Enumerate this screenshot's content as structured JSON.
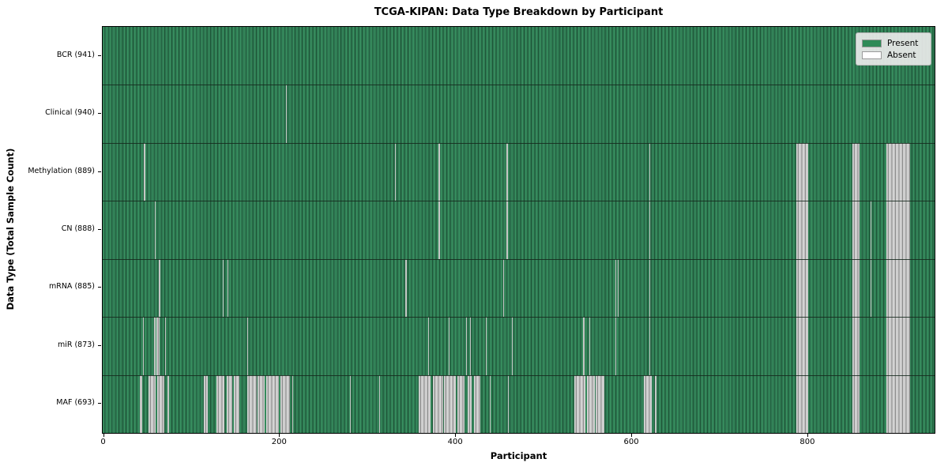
{
  "chart_data": {
    "type": "heatmap",
    "title": "TCGA-KIPAN: Data Type Breakdown by Participant",
    "xlabel": "Participant",
    "ylabel": "Data Type (Total Sample Count)",
    "x_ticks": [
      0,
      200,
      400,
      600,
      800
    ],
    "x_max": 945,
    "grid": false,
    "legend": {
      "position": "upper-right",
      "items": [
        {
          "label": "Present",
          "color": "#2e8b57"
        },
        {
          "label": "Absent",
          "color": "#ffffff"
        }
      ]
    },
    "rows": [
      {
        "label": "BCR (941)",
        "data_type": "BCR",
        "present_count": 941,
        "absent_ranges": []
      },
      {
        "label": "Clinical (940)",
        "data_type": "Clinical",
        "present_count": 940,
        "absent_ranges": [
          [
            208,
            1
          ]
        ]
      },
      {
        "label": "Methylation (889)",
        "data_type": "Methylation",
        "present_count": 889,
        "absent_ranges": [
          [
            47,
            1
          ],
          [
            332,
            1
          ],
          [
            381,
            2
          ],
          [
            459,
            1
          ],
          [
            621,
            1
          ],
          [
            788,
            13
          ],
          [
            852,
            8
          ],
          [
            890,
            27
          ]
        ]
      },
      {
        "label": "CN (888)",
        "data_type": "CN",
        "present_count": 888,
        "absent_ranges": [
          [
            59,
            1
          ],
          [
            381,
            2
          ],
          [
            459,
            1
          ],
          [
            621,
            1
          ],
          [
            788,
            13
          ],
          [
            852,
            8
          ],
          [
            872,
            1
          ],
          [
            890,
            27
          ]
        ]
      },
      {
        "label": "mRNA (885)",
        "data_type": "mRNA",
        "present_count": 885,
        "absent_ranges": [
          [
            64,
            1
          ],
          [
            136,
            1
          ],
          [
            142,
            1
          ],
          [
            344,
            1
          ],
          [
            455,
            1
          ],
          [
            582,
            1
          ],
          [
            585,
            1
          ],
          [
            621,
            1
          ],
          [
            788,
            13
          ],
          [
            852,
            8
          ],
          [
            872,
            1
          ],
          [
            890,
            27
          ]
        ]
      },
      {
        "label": "miR (873)",
        "data_type": "miR",
        "present_count": 873,
        "absent_ranges": [
          [
            46,
            1
          ],
          [
            58,
            2
          ],
          [
            61,
            4
          ],
          [
            71,
            1
          ],
          [
            164,
            1
          ],
          [
            370,
            1
          ],
          [
            393,
            1
          ],
          [
            413,
            1
          ],
          [
            417,
            1
          ],
          [
            435,
            1
          ],
          [
            465,
            1
          ],
          [
            546,
            1
          ],
          [
            553,
            1
          ],
          [
            582,
            1
          ],
          [
            621,
            1
          ],
          [
            788,
            13
          ],
          [
            852,
            8
          ],
          [
            890,
            27
          ]
        ]
      },
      {
        "label": "MAF (693)",
        "data_type": "MAF",
        "present_count": 693,
        "absent_ranges": [
          [
            42,
            3
          ],
          [
            52,
            8
          ],
          [
            62,
            8
          ],
          [
            74,
            1
          ],
          [
            115,
            4
          ],
          [
            129,
            9
          ],
          [
            141,
            6
          ],
          [
            149,
            6
          ],
          [
            164,
            11
          ],
          [
            176,
            8
          ],
          [
            186,
            14
          ],
          [
            202,
            11
          ],
          [
            215,
            1
          ],
          [
            281,
            1
          ],
          [
            314,
            1
          ],
          [
            359,
            13
          ],
          [
            375,
            12
          ],
          [
            388,
            13
          ],
          [
            403,
            8
          ],
          [
            415,
            4
          ],
          [
            422,
            7
          ],
          [
            440,
            1
          ],
          [
            460,
            1
          ],
          [
            536,
            12
          ],
          [
            550,
            9
          ],
          [
            560,
            10
          ],
          [
            615,
            9
          ],
          [
            627,
            2
          ],
          [
            788,
            13
          ],
          [
            852,
            8
          ],
          [
            890,
            27
          ]
        ]
      }
    ]
  },
  "colors": {
    "present_fill": "#2e8b57",
    "present_stripe_dark": "#1f5939",
    "absent_fill": "#ffffff",
    "absent_stripe_gray": "#bcbcbc",
    "row_divider": "#15281c",
    "plot_border": "#000000",
    "legend_bg": "#eaeaea",
    "legend_border": "#b3b3b3"
  }
}
